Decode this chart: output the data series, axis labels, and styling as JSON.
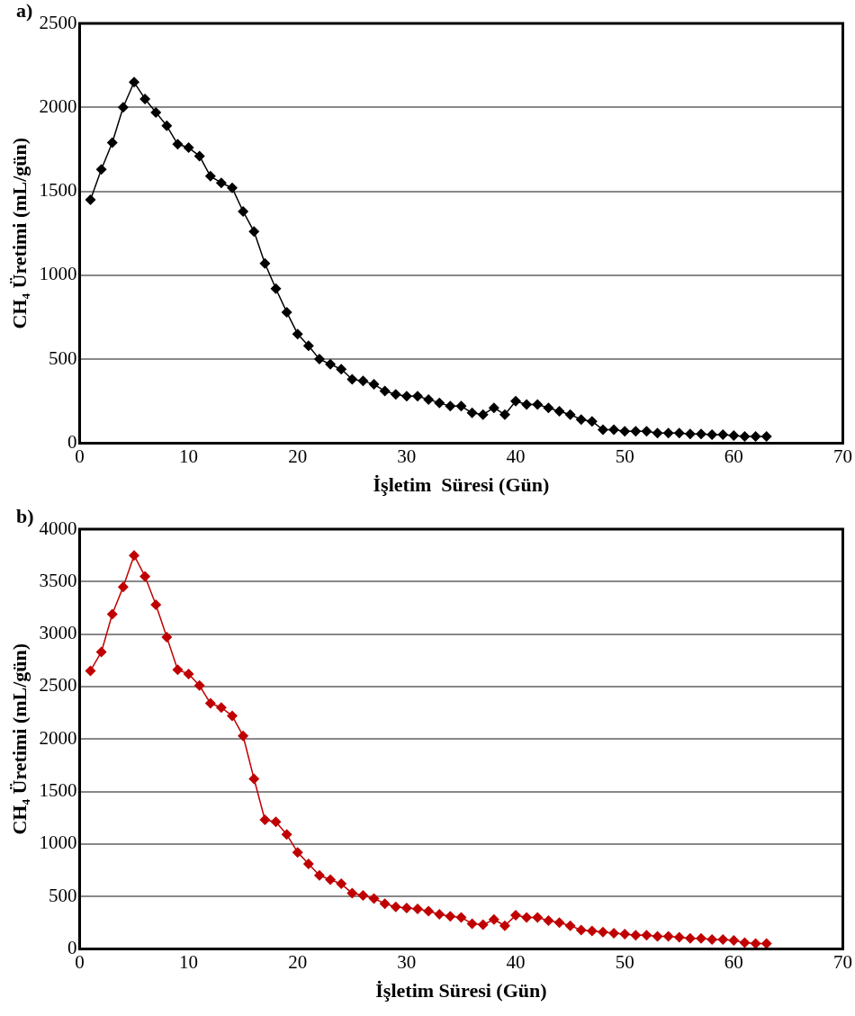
{
  "chart_data": [
    {
      "type": "line",
      "annotations": [
        "a)"
      ],
      "xlabel": "İşletim  Süresi (Gün)",
      "ylabel": "CH₄ Üretimi (mL/gün)",
      "x": [
        1,
        2,
        3,
        4,
        5,
        6,
        7,
        8,
        9,
        10,
        11,
        12,
        13,
        14,
        15,
        16,
        17,
        18,
        19,
        20,
        21,
        22,
        23,
        24,
        25,
        26,
        27,
        28,
        29,
        30,
        31,
        32,
        33,
        34,
        35,
        36,
        37,
        38,
        39,
        40,
        41,
        42,
        43,
        44,
        45,
        46,
        47,
        48,
        49,
        50,
        51,
        52,
        53,
        54,
        55,
        56,
        57,
        58,
        59,
        60,
        61,
        62,
        63
      ],
      "series": [
        {
          "color": "#000000",
          "values": [
            1450,
            1630,
            1790,
            2000,
            2150,
            2050,
            1970,
            1890,
            1780,
            1760,
            1710,
            1590,
            1550,
            1520,
            1380,
            1260,
            1070,
            920,
            780,
            650,
            580,
            500,
            470,
            440,
            380,
            370,
            350,
            310,
            290,
            280,
            280,
            260,
            240,
            220,
            220,
            180,
            170,
            210,
            170,
            250,
            230,
            230,
            210,
            190,
            170,
            140,
            130,
            80,
            80,
            70,
            70,
            70,
            60,
            60,
            60,
            55,
            55,
            50,
            50,
            45,
            40,
            40,
            40
          ]
        }
      ],
      "xlim": [
        0,
        70
      ],
      "xticks": [
        0,
        10,
        20,
        30,
        40,
        50,
        60,
        70
      ],
      "ylim": [
        0,
        2500
      ],
      "yticks": [
        0,
        500,
        1000,
        1500,
        2000,
        2500
      ],
      "grid": "y",
      "legend": false,
      "marker": "diamond",
      "line_style": "solid"
    },
    {
      "type": "line",
      "annotations": [
        "b)"
      ],
      "xlabel": "İşletim Süresi (Gün)",
      "ylabel": "CH₄ Üretimi (mL/gün)",
      "x": [
        1,
        2,
        3,
        4,
        5,
        6,
        7,
        8,
        9,
        10,
        11,
        12,
        13,
        14,
        15,
        16,
        17,
        18,
        19,
        20,
        21,
        22,
        23,
        24,
        25,
        26,
        27,
        28,
        29,
        30,
        31,
        32,
        33,
        34,
        35,
        36,
        37,
        38,
        39,
        40,
        41,
        42,
        43,
        44,
        45,
        46,
        47,
        48,
        49,
        50,
        51,
        52,
        53,
        54,
        55,
        56,
        57,
        58,
        59,
        60,
        61,
        62,
        63
      ],
      "series": [
        {
          "color": "#c00000",
          "values": [
            2650,
            2830,
            3190,
            3450,
            3750,
            3550,
            3280,
            2970,
            2660,
            2620,
            2510,
            2340,
            2300,
            2220,
            2030,
            1620,
            1230,
            1210,
            1090,
            920,
            810,
            700,
            660,
            620,
            530,
            510,
            480,
            430,
            400,
            390,
            380,
            360,
            330,
            310,
            300,
            240,
            230,
            280,
            220,
            320,
            300,
            300,
            270,
            250,
            220,
            180,
            170,
            160,
            150,
            140,
            130,
            130,
            120,
            120,
            110,
            100,
            100,
            90,
            90,
            80,
            60,
            50,
            50
          ]
        }
      ],
      "xlim": [
        0,
        70
      ],
      "xticks": [
        0,
        10,
        20,
        30,
        40,
        50,
        60,
        70
      ],
      "ylim": [
        0,
        4000
      ],
      "yticks": [
        0,
        500,
        1000,
        1500,
        2000,
        2500,
        3000,
        3500,
        4000
      ],
      "grid": "y",
      "legend": false,
      "marker": "diamond",
      "line_style": "solid"
    }
  ]
}
